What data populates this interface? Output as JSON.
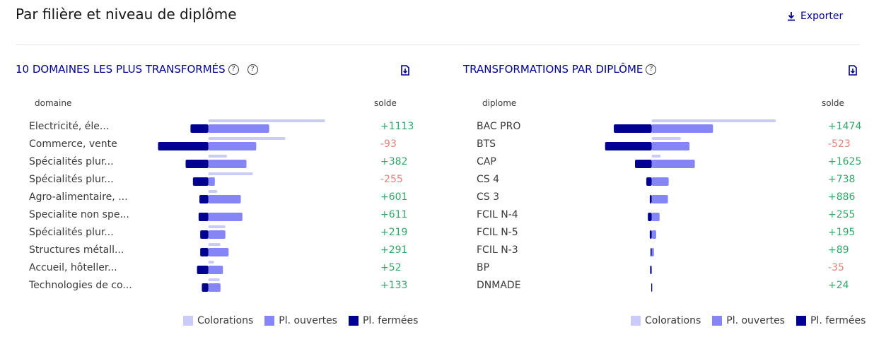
{
  "page": {
    "title": "Par filière et niveau de diplôme",
    "export_label": "Exporter"
  },
  "colors": {
    "colorations": "#cacafb",
    "ouvertes": "#8585f6",
    "fermees": "#000091",
    "positive": "#2fa86a",
    "negative": "#e6817a",
    "title": "#000091"
  },
  "icons": {
    "export": "download-icon",
    "help": "question-circle-icon",
    "export_chart": "file-download-icon"
  },
  "legend": [
    "Colorations",
    "Pl. ouvertes",
    "Pl. fermées"
  ],
  "panels": [
    {
      "title": "10 DOMAINES LES PLUS TRANSFORMÉS",
      "col_label": "domaine",
      "col_solde": "solde",
      "rows": [
        {
          "label": "Electricité, éle...",
          "solde": "+1113"
        },
        {
          "label": "Commerce, vente",
          "solde": "-93"
        },
        {
          "label": "Spécialités plur...",
          "solde": "+382"
        },
        {
          "label": "Spécialités plur...",
          "solde": "-255"
        },
        {
          "label": "Agro-alimentaire, ...",
          "solde": "+601"
        },
        {
          "label": "Specialite non spe...",
          "solde": "+611"
        },
        {
          "label": "Spécialités plur...",
          "solde": "+219"
        },
        {
          "label": "Structures métall...",
          "solde": "+291"
        },
        {
          "label": "Accueil, hôteller...",
          "solde": "+52"
        },
        {
          "label": "Technologies de co...",
          "solde": "+133"
        }
      ]
    },
    {
      "title": "TRANSFORMATIONS PAR DIPLÔME",
      "col_label": "diplome",
      "col_solde": "solde",
      "rows": [
        {
          "label": "BAC PRO",
          "solde": "+1474"
        },
        {
          "label": "BTS",
          "solde": "-523"
        },
        {
          "label": "CAP",
          "solde": "+1625"
        },
        {
          "label": "CS 4",
          "solde": "+738"
        },
        {
          "label": "CS 3",
          "solde": "+886"
        },
        {
          "label": "FCIL N-4",
          "solde": "+255"
        },
        {
          "label": "FCIL N-5",
          "solde": "+195"
        },
        {
          "label": "FCIL N-3",
          "solde": "+89"
        },
        {
          "label": "BP",
          "solde": "-35"
        },
        {
          "label": "DNMADE",
          "solde": "+24"
        }
      ]
    }
  ],
  "chart_data": [
    {
      "type": "bar",
      "title": "10 DOMAINES LES PLUS TRANSFORMÉS",
      "categories": [
        "Electricité, éle...",
        "Commerce, vente",
        "Spécialités plur...",
        "Spécialités plur...",
        "Agro-alimentaire, ...",
        "Specialite non spe...",
        "Spécialités plur...",
        "Structures métall...",
        "Accueil, hôteller...",
        "Technologies de co..."
      ],
      "series": [
        {
          "name": "Colorations",
          "values": [
            1440,
            950,
            230,
            550,
            110,
            0,
            210,
            150,
            70,
            140
          ]
        },
        {
          "name": "Pl. ouvertes",
          "values": [
            750,
            590,
            470,
            80,
            400,
            420,
            210,
            250,
            180,
            150
          ]
        },
        {
          "name": "Pl. fermées",
          "values": [
            -220,
            -620,
            -280,
            -190,
            -110,
            -120,
            -100,
            -100,
            -140,
            -80
          ]
        }
      ],
      "solde": [
        1113,
        -93,
        382,
        -255,
        601,
        611,
        219,
        291,
        52,
        133
      ],
      "xlim": [
        -720,
        1720
      ]
    },
    {
      "type": "bar",
      "title": "TRANSFORMATIONS PAR DIPLÔME",
      "categories": [
        "BAC PRO",
        "BTS",
        "CAP",
        "CS 4",
        "CS 3",
        "FCIL N-4",
        "FCIL N-5",
        "FCIL N-3",
        "BP",
        "DNMADE"
      ],
      "series": [
        {
          "name": "Colorations",
          "values": [
            3280,
            770,
            240,
            0,
            0,
            0,
            0,
            0,
            0,
            0
          ]
        },
        {
          "name": "Pl. ouvertes",
          "values": [
            1620,
            1000,
            1140,
            450,
            430,
            210,
            120,
            60,
            0,
            20
          ]
        },
        {
          "name": "Pl. fermées",
          "values": [
            -1000,
            -1230,
            -440,
            -140,
            -50,
            -100,
            -50,
            -30,
            -40,
            -10
          ]
        }
      ],
      "solde": [
        1474,
        -523,
        1625,
        738,
        886,
        255,
        195,
        89,
        -35,
        24
      ],
      "xlim": [
        -1430,
        3800
      ]
    }
  ]
}
